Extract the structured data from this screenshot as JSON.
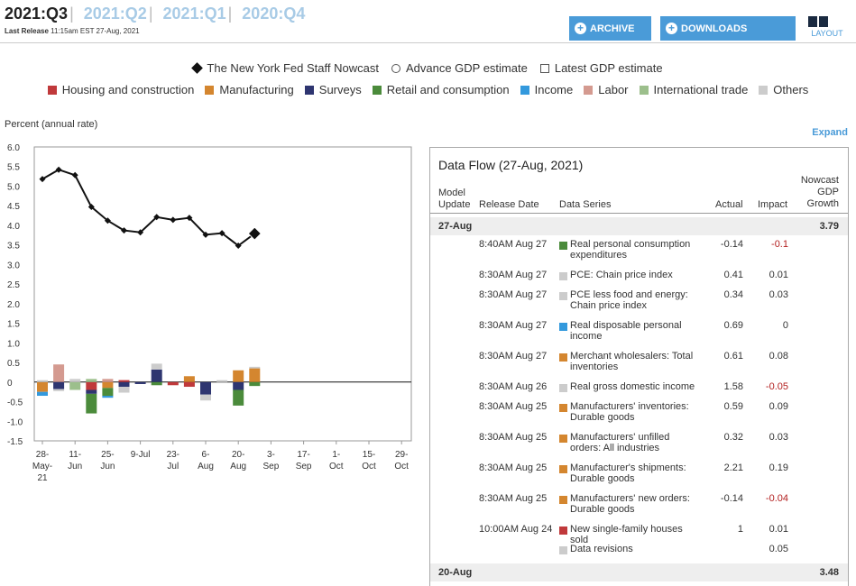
{
  "header": {
    "quarters": [
      "2021:Q3",
      "2021:Q2",
      "2021:Q1",
      "2020:Q4"
    ],
    "active_quarter": "2021:Q3",
    "last_release_label": "Last Release",
    "last_release_value": "11:15am EST 27-Aug, 2021",
    "archive_label": "ARCHIVE",
    "downloads_label": "DOWNLOADS",
    "layout_label": "LAYOUT"
  },
  "legend": {
    "markers": [
      {
        "icon": "diamond-icon",
        "label": "The New York Fed Staff Nowcast"
      },
      {
        "icon": "circle-icon",
        "label": "Advance GDP estimate"
      },
      {
        "icon": "square-icon",
        "label": "Latest GDP estimate"
      }
    ],
    "categories": [
      {
        "label": "Housing and construction",
        "color": "#c0393b"
      },
      {
        "label": "Manufacturing",
        "color": "#d4862f"
      },
      {
        "label": "Surveys",
        "color": "#2e3570"
      },
      {
        "label": "Retail and consumption",
        "color": "#4b8b3b"
      },
      {
        "label": "Income",
        "color": "#3399dd"
      },
      {
        "label": "Labor",
        "color": "#d49a90"
      },
      {
        "label": "International trade",
        "color": "#9cbf8c"
      },
      {
        "label": "Others",
        "color": "#cccccc"
      }
    ]
  },
  "expand_label": "Expand",
  "chart_data": {
    "type": "line",
    "ylabel": "Percent (annual rate)",
    "ylim": [
      -1.5,
      6.0
    ],
    "yticks": [
      "6.0",
      "5.5",
      "5.0",
      "4.5",
      "4.0",
      "3.5",
      "3.0",
      "2.5",
      "2.0",
      "1.5",
      "1.0",
      "0.5",
      "0",
      "-0.5",
      "-1.0",
      "-1.5"
    ],
    "xtick_labels": [
      [
        "28-",
        "May-",
        "21"
      ],
      [
        "11-",
        "Jun"
      ],
      [
        "25-",
        "Jun"
      ],
      [
        "9-Jul"
      ],
      [
        "23-",
        "Jul"
      ],
      [
        "6-",
        "Aug"
      ],
      [
        "20-",
        "Aug"
      ],
      [
        "3-",
        "Sep"
      ],
      [
        "17-",
        "Sep"
      ],
      [
        "1-",
        "Oct"
      ],
      [
        "15-",
        "Oct"
      ],
      [
        "29-",
        "Oct"
      ]
    ],
    "nowcast_series": {
      "name": "The New York Fed Staff Nowcast",
      "x_index": [
        0,
        0.5,
        1,
        1.5,
        2,
        2.5,
        3,
        3.5,
        4,
        4.5,
        5,
        5.5,
        6,
        6.5
      ],
      "values": [
        5.18,
        5.42,
        5.28,
        4.47,
        4.12,
        3.87,
        3.82,
        4.21,
        4.14,
        4.19,
        3.76,
        3.8,
        3.48,
        3.79
      ]
    },
    "impact_bars": [
      {
        "x": 0,
        "segments": [
          {
            "cat": "Manufacturing",
            "v": -0.25
          },
          {
            "cat": "Income",
            "v": -0.1
          },
          {
            "cat": "Others",
            "v": 0.05
          }
        ]
      },
      {
        "x": 0.5,
        "segments": [
          {
            "cat": "Labor",
            "v": 0.45
          },
          {
            "cat": "Surveys",
            "v": -0.18
          },
          {
            "cat": "Others",
            "v": -0.05
          }
        ]
      },
      {
        "x": 1,
        "segments": [
          {
            "cat": "International trade",
            "v": -0.2
          },
          {
            "cat": "Others",
            "v": 0.08
          }
        ]
      },
      {
        "x": 1.5,
        "segments": [
          {
            "cat": "Housing and construction",
            "v": -0.2
          },
          {
            "cat": "Surveys",
            "v": -0.1
          },
          {
            "cat": "Retail and consumption",
            "v": -0.5
          },
          {
            "cat": "International trade",
            "v": 0.08
          }
        ]
      },
      {
        "x": 2,
        "segments": [
          {
            "cat": "Manufacturing",
            "v": -0.15
          },
          {
            "cat": "Retail and consumption",
            "v": -0.2
          },
          {
            "cat": "Income",
            "v": -0.05
          },
          {
            "cat": "Labor",
            "v": 0.08
          }
        ]
      },
      {
        "x": 2.5,
        "segments": [
          {
            "cat": "Housing and construction",
            "v": 0.05
          },
          {
            "cat": "Surveys",
            "v": -0.12
          },
          {
            "cat": "Others",
            "v": -0.15
          }
        ]
      },
      {
        "x": 3,
        "segments": [
          {
            "cat": "Surveys",
            "v": -0.05
          }
        ]
      },
      {
        "x": 3.5,
        "segments": [
          {
            "cat": "Surveys",
            "v": 0.32
          },
          {
            "cat": "Others",
            "v": 0.15
          },
          {
            "cat": "Retail and consumption",
            "v": -0.08
          }
        ]
      },
      {
        "x": 4,
        "segments": [
          {
            "cat": "Housing and construction",
            "v": -0.08
          }
        ]
      },
      {
        "x": 4.5,
        "segments": [
          {
            "cat": "Manufacturing",
            "v": 0.15
          },
          {
            "cat": "Housing and construction",
            "v": -0.12
          }
        ]
      },
      {
        "x": 5,
        "segments": [
          {
            "cat": "Surveys",
            "v": -0.32
          },
          {
            "cat": "Others",
            "v": -0.15
          }
        ]
      },
      {
        "x": 5.5,
        "segments": [
          {
            "cat": "Others",
            "v": 0.05
          }
        ]
      },
      {
        "x": 6,
        "segments": [
          {
            "cat": "Manufacturing",
            "v": 0.3
          },
          {
            "cat": "Surveys",
            "v": -0.2
          },
          {
            "cat": "Retail and consumption",
            "v": -0.4
          }
        ]
      },
      {
        "x": 6.5,
        "segments": [
          {
            "cat": "Manufacturing",
            "v": 0.35
          },
          {
            "cat": "Others",
            "v": 0.04
          },
          {
            "cat": "Retail and consumption",
            "v": -0.1
          }
        ]
      }
    ]
  },
  "dataflow": {
    "title": "Data Flow (27-Aug, 2021)",
    "columns": {
      "model_update": "Model Update",
      "release_date": "Release Date",
      "data_series": "Data Series",
      "actual": "Actual",
      "impact": "Impact",
      "nowcast": "Nowcast GDP Growth"
    },
    "groups": [
      {
        "date": "27-Aug",
        "nowcast": "3.79"
      },
      {
        "date": "20-Aug",
        "nowcast": "3.48"
      }
    ],
    "rows": [
      {
        "release": "8:40AM Aug 27",
        "series": "Real personal consumption expenditures",
        "actual": "-0.14",
        "impact": "-0.1",
        "neg": true,
        "color": "#4b8b3b"
      },
      {
        "release": "8:30AM Aug 27",
        "series": "PCE: Chain price index",
        "actual": "0.41",
        "impact": "0.01",
        "neg": false,
        "color": "#cccccc"
      },
      {
        "release": "8:30AM Aug 27",
        "series": "PCE less food and energy: Chain price index",
        "actual": "0.34",
        "impact": "0.03",
        "neg": false,
        "color": "#cccccc"
      },
      {
        "release": "8:30AM Aug 27",
        "series": "Real disposable personal income",
        "actual": "0.69",
        "impact": "0",
        "neg": false,
        "color": "#3399dd"
      },
      {
        "release": "8:30AM Aug 27",
        "series": "Merchant wholesalers: Total inventories",
        "actual": "0.61",
        "impact": "0.08",
        "neg": false,
        "color": "#d4862f"
      },
      {
        "release": "8:30AM Aug 26",
        "series": "Real gross domestic income",
        "actual": "1.58",
        "impact": "-0.05",
        "neg": true,
        "color": "#cccccc"
      },
      {
        "release": "8:30AM Aug 25",
        "series": "Manufacturers' inventories: Durable goods",
        "actual": "0.59",
        "impact": "0.09",
        "neg": false,
        "color": "#d4862f"
      },
      {
        "release": "8:30AM Aug 25",
        "series": "Manufacturers' unfilled orders: All industries",
        "actual": "0.32",
        "impact": "0.03",
        "neg": false,
        "color": "#d4862f"
      },
      {
        "release": "8:30AM Aug 25",
        "series": "Manufacturer's shipments: Durable goods",
        "actual": "2.21",
        "impact": "0.19",
        "neg": false,
        "color": "#d4862f"
      },
      {
        "release": "8:30AM Aug 25",
        "series": "Manufacturers' new orders: Durable goods",
        "actual": "-0.14",
        "impact": "-0.04",
        "neg": true,
        "color": "#d4862f"
      },
      {
        "release": "10:00AM Aug 24",
        "series": "New single-family houses sold",
        "actual": "1",
        "impact": "0.01",
        "neg": false,
        "color": "#c0393b"
      },
      {
        "release": "",
        "series": "Data revisions",
        "actual": "",
        "impact": "0.05",
        "neg": false,
        "color": "#cccccc"
      }
    ]
  }
}
